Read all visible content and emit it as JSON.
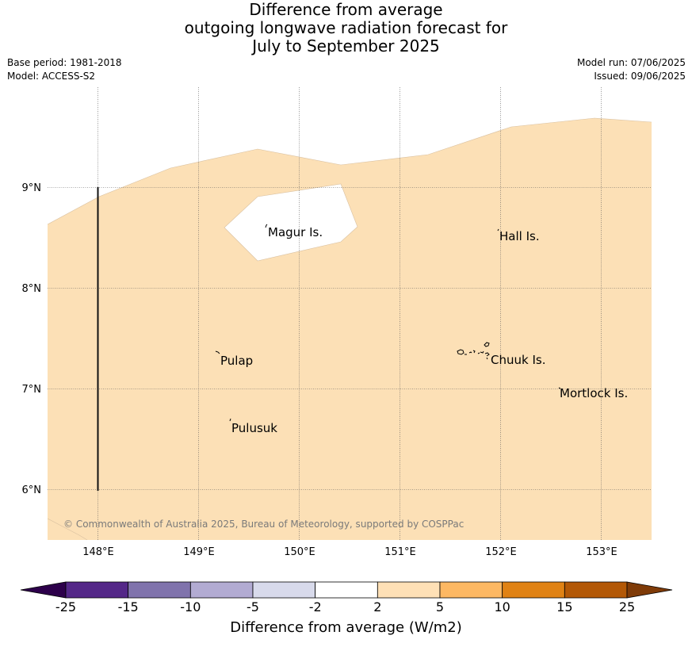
{
  "header": {
    "title_lines": [
      "Difference from average",
      "outgoing longwave radiation forecast for",
      "July to September 2025"
    ],
    "base_period": "Base period: 1981-2018",
    "model": "Model: ACCESS-S2",
    "model_run": "Model run: 07/06/2025",
    "issued": "Issued: 09/06/2025"
  },
  "map": {
    "fill_color": "#fce0b6",
    "neutral_color": "#ffffff",
    "lon_labels": [
      "148°E",
      "149°E",
      "150°E",
      "151°E",
      "152°E",
      "153°E"
    ],
    "lat_labels": [
      "9°N",
      "8°N",
      "7°N",
      "6°N"
    ],
    "places": [
      "Magur Is.",
      "Hall Is.",
      "Pulap",
      "Chuuk Is.",
      "Mortlock Is.",
      "Pulusuk"
    ],
    "copyright": "© Commonwealth of Australia 2025, Bureau of Meteorology, supported by COSPPac"
  },
  "colorbar": {
    "title": "Difference from average (W/m2)",
    "ticks": [
      "-25",
      "-15",
      "-10",
      "-5",
      "-2",
      "2",
      "5",
      "10",
      "15",
      "25"
    ],
    "colors": [
      "#2d004b",
      "#542788",
      "#8073ac",
      "#b2abd2",
      "#d8daeb",
      "#ffffff",
      "#fee0b6",
      "#fdb863",
      "#e08214",
      "#b35806",
      "#7f3b08"
    ]
  }
}
